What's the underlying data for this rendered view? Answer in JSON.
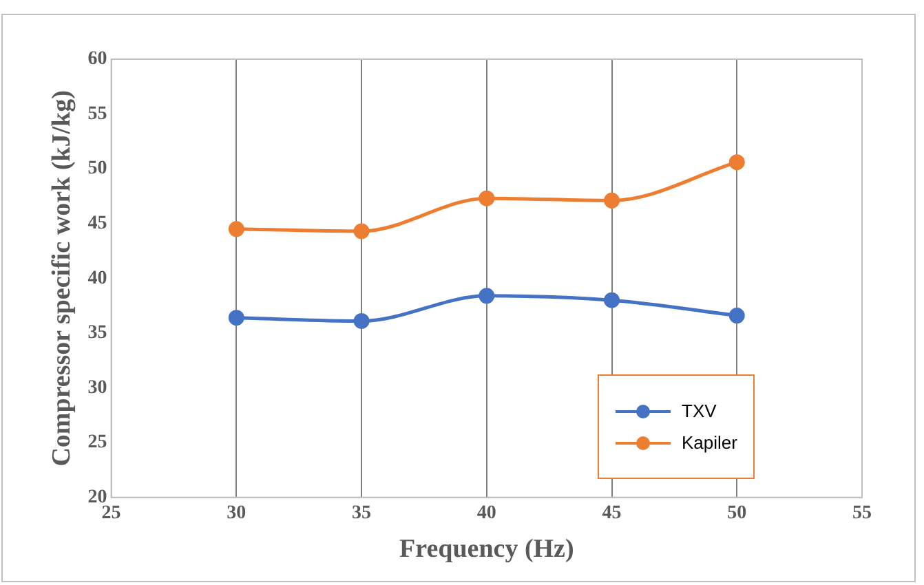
{
  "chart_data": {
    "type": "line",
    "xlabel": "Frequency (Hz)",
    "ylabel": "Compressor specific work (kJ/kg)",
    "x": [
      30,
      35,
      40,
      45,
      50
    ],
    "series": [
      {
        "name": "TXV",
        "color": "#4472c4",
        "values": [
          36.4,
          36.1,
          38.4,
          38.0,
          36.6
        ]
      },
      {
        "name": "Kapiler",
        "color": "#ed7d31",
        "values": [
          44.5,
          44.3,
          47.3,
          47.1,
          50.6
        ]
      }
    ],
    "xlim": [
      25,
      55
    ],
    "xticks": [
      25,
      30,
      35,
      40,
      45,
      50,
      55
    ],
    "ylim": [
      20,
      60
    ],
    "yticks": [
      20,
      25,
      30,
      35,
      40,
      45,
      50,
      55,
      60
    ],
    "grid": "x",
    "legend": "bottom right",
    "marker": "circle",
    "line_style": "solid"
  }
}
